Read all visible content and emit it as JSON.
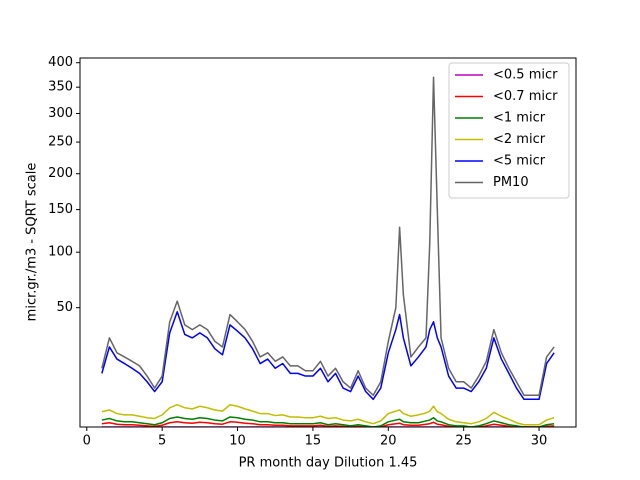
{
  "chart_data": {
    "type": "line",
    "xlabel": "PR month day  Dilution 1.45",
    "ylabel": "micr.gr./m3 - SQRT scale",
    "yscale": "sqrt",
    "legend": "upper right",
    "xlim": [
      -0.45,
      32.45
    ],
    "ylim": [
      0.6,
      410
    ],
    "xticks": [
      0,
      5,
      10,
      15,
      20,
      25,
      30
    ],
    "yticks": [
      50,
      100,
      150,
      200,
      250,
      300,
      350,
      400
    ],
    "x": [
      1,
      1.5,
      2,
      2.5,
      3,
      3.5,
      4,
      4.5,
      5,
      5.5,
      6,
      6.5,
      7,
      7.5,
      8,
      8.5,
      9,
      9.5,
      10,
      10.5,
      11,
      11.5,
      12,
      12.5,
      13,
      13.5,
      14,
      14.5,
      15,
      15.5,
      16,
      16.5,
      17,
      17.5,
      18,
      18.5,
      19,
      19.5,
      20,
      20.5,
      20.75,
      21,
      21.5,
      22,
      22.5,
      22.75,
      23,
      23.25,
      23.5,
      24,
      24.5,
      25,
      25.5,
      26,
      26.5,
      27,
      27.5,
      28,
      28.5,
      29,
      29.5,
      30,
      30.5,
      31
    ],
    "series": [
      {
        "name": "<0.5 micr",
        "color": "#bf00bf",
        "values": [
          0.6,
          0.6,
          0.6,
          0.6,
          0.6,
          0.6,
          0.6,
          0.6,
          0.6,
          0.6,
          0.6,
          0.6,
          0.6,
          0.6,
          0.6,
          0.6,
          0.6,
          0.6,
          0.6,
          0.6,
          0.6,
          0.6,
          0.6,
          0.6,
          0.6,
          0.6,
          0.6,
          0.6,
          0.6,
          0.6,
          0.6,
          0.6,
          0.6,
          0.6,
          0.6,
          0.6,
          0.6,
          0.6,
          0.6,
          0.6,
          0.6,
          0.6,
          0.6,
          0.6,
          0.6,
          0.6,
          0.6,
          0.6,
          0.6,
          0.6,
          0.6,
          0.6,
          0.6,
          0.6,
          0.6,
          0.6,
          0.6,
          0.6,
          0.6,
          0.6,
          0.6,
          0.6,
          0.6,
          0.6
        ]
      },
      {
        "name": "<0.7 micr",
        "color": "#ff0000",
        "values": [
          0.9,
          1.0,
          0.85,
          0.8,
          0.8,
          0.75,
          0.7,
          0.65,
          0.75,
          1.0,
          1.1,
          1.0,
          0.95,
          1.05,
          1.0,
          0.9,
          0.85,
          1.1,
          1.05,
          0.95,
          0.9,
          0.8,
          0.8,
          0.75,
          0.75,
          0.7,
          0.7,
          0.7,
          0.7,
          0.75,
          0.65,
          0.7,
          0.65,
          0.6,
          0.65,
          0.6,
          0.6,
          0.6,
          0.8,
          0.9,
          0.95,
          0.8,
          0.75,
          0.75,
          0.85,
          0.9,
          1.05,
          0.85,
          0.8,
          0.65,
          0.6,
          0.6,
          0.6,
          0.6,
          0.7,
          0.85,
          0.75,
          0.65,
          0.6,
          0.6,
          0.6,
          0.6,
          0.65,
          0.7
        ]
      },
      {
        "name": "<1 micr",
        "color": "#008000",
        "values": [
          1.3,
          1.5,
          1.2,
          1.1,
          1.1,
          1.0,
          0.9,
          0.8,
          1.0,
          1.5,
          1.7,
          1.5,
          1.4,
          1.6,
          1.5,
          1.3,
          1.2,
          1.7,
          1.6,
          1.4,
          1.3,
          1.1,
          1.1,
          1.0,
          1.0,
          0.9,
          0.9,
          0.9,
          0.9,
          1.0,
          0.8,
          0.9,
          0.8,
          0.7,
          0.8,
          0.7,
          0.6,
          0.7,
          1.1,
          1.3,
          1.4,
          1.1,
          1.0,
          1.0,
          1.2,
          1.3,
          1.6,
          1.2,
          1.1,
          0.8,
          0.7,
          0.7,
          0.6,
          0.7,
          0.9,
          1.2,
          1.0,
          0.8,
          0.7,
          0.6,
          0.6,
          0.6,
          0.8,
          0.9
        ]
      },
      {
        "name": "<2 micr",
        "color": "#bfbf00",
        "values": [
          2.5,
          2.8,
          2.2,
          2.0,
          2.0,
          1.8,
          1.6,
          1.5,
          2.0,
          3.2,
          3.8,
          3.2,
          3.0,
          3.5,
          3.2,
          2.8,
          2.6,
          3.8,
          3.5,
          3.0,
          2.6,
          2.2,
          2.2,
          1.9,
          2.0,
          1.7,
          1.7,
          1.6,
          1.6,
          1.8,
          1.5,
          1.6,
          1.3,
          1.2,
          1.4,
          1.1,
          0.9,
          1.2,
          2.2,
          2.6,
          2.8,
          2.2,
          1.8,
          2.0,
          2.3,
          2.6,
          3.5,
          2.5,
          2.2,
          1.4,
          1.1,
          1.0,
          0.9,
          1.1,
          1.5,
          2.4,
          1.8,
          1.4,
          1.0,
          0.8,
          0.8,
          0.8,
          1.3,
          1.6
        ]
      },
      {
        "name": "<5 micr",
        "color": "#0000ff",
        "values": [
          13,
          25,
          19,
          17,
          15,
          13,
          10,
          7,
          10,
          33,
          47,
          32,
          30,
          33,
          30,
          24,
          21,
          38,
          34,
          30,
          24,
          17,
          19,
          15,
          17,
          13,
          13,
          12,
          12,
          15,
          10,
          13,
          8,
          7,
          12,
          7,
          5,
          8,
          22,
          35,
          45,
          30,
          16,
          20,
          25,
          35,
          40,
          30,
          25,
          12,
          8,
          8,
          7,
          10,
          15,
          30,
          19,
          13,
          8,
          5,
          5,
          5,
          17,
          22
        ]
      },
      {
        "name": "PM10",
        "color": "#666666",
        "values": [
          15,
          30,
          22,
          20,
          18,
          16,
          12,
          8,
          12,
          40,
          55,
          38,
          35,
          38,
          35,
          28,
          25,
          45,
          40,
          35,
          28,
          20,
          22,
          18,
          20,
          16,
          16,
          14,
          14,
          18,
          12,
          15,
          10,
          8,
          14,
          8,
          6,
          10,
          28,
          50,
          128,
          60,
          20,
          25,
          30,
          110,
          370,
          150,
          30,
          15,
          10,
          10,
          8,
          12,
          18,
          35,
          22,
          15,
          10,
          6,
          6,
          6,
          20,
          25
        ]
      }
    ]
  }
}
